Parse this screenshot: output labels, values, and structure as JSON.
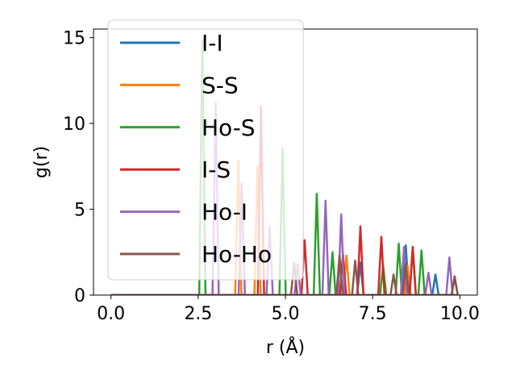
{
  "chart_data": {
    "type": "line",
    "xlabel": "r (Å)",
    "ylabel": "g(r)",
    "xlim": [
      -0.5,
      10.5
    ],
    "ylim": [
      0,
      15.5
    ],
    "xticks": [
      0.0,
      2.5,
      5.0,
      7.5,
      10.0
    ],
    "xtick_labels": [
      "0.0",
      "2.5",
      "5.0",
      "7.5",
      "10.0"
    ],
    "yticks": [
      0,
      5,
      10,
      15
    ],
    "ytick_labels": [
      "0",
      "5",
      "10",
      "15"
    ],
    "grid": false,
    "legend_position": "top-left",
    "series": [
      {
        "name": "I-I",
        "color": "#1f77b4",
        "peaks": [
          [
            7.15,
            1.9
          ],
          [
            8.45,
            2.9
          ],
          [
            9.3,
            1.2
          ],
          [
            9.85,
            1.0
          ]
        ]
      },
      {
        "name": "S-S",
        "color": "#ff7f0e",
        "peaks": [
          [
            3.65,
            7.8
          ],
          [
            4.2,
            7.5
          ],
          [
            6.75,
            2.3
          ],
          [
            8.5,
            1.7
          ]
        ]
      },
      {
        "name": "Ho-S",
        "color": "#2ca02c",
        "peaks": [
          [
            2.62,
            14.8
          ],
          [
            4.92,
            8.5
          ],
          [
            5.9,
            5.9
          ],
          [
            6.35,
            2.5
          ],
          [
            7.8,
            1.7
          ],
          [
            8.25,
            3.0
          ],
          [
            8.65,
            2.8
          ],
          [
            8.9,
            2.6
          ]
        ]
      },
      {
        "name": "I-S",
        "color": "#d62728",
        "peaks": [
          [
            4.3,
            11.0
          ],
          [
            5.55,
            3.2
          ],
          [
            6.65,
            2.4
          ],
          [
            7.15,
            4.0
          ],
          [
            7.75,
            3.4
          ],
          [
            8.65,
            2.8
          ]
        ]
      },
      {
        "name": "Ho-I",
        "color": "#9467bd",
        "peaks": [
          [
            3.0,
            11.2
          ],
          [
            3.75,
            6.5
          ],
          [
            4.55,
            4.0
          ],
          [
            5.35,
            1.8
          ],
          [
            6.15,
            5.5
          ],
          [
            6.6,
            4.7
          ],
          [
            8.4,
            2.8
          ],
          [
            9.1,
            1.3
          ],
          [
            9.7,
            2.2
          ]
        ]
      },
      {
        "name": "Ho-Ho",
        "color": "#8c564b",
        "peaks": [
          [
            5.25,
            1.9
          ],
          [
            6.55,
            2.3
          ],
          [
            7.0,
            2.0
          ],
          [
            8.1,
            1.2
          ],
          [
            8.45,
            1.8
          ],
          [
            9.85,
            1.1
          ]
        ]
      }
    ]
  }
}
